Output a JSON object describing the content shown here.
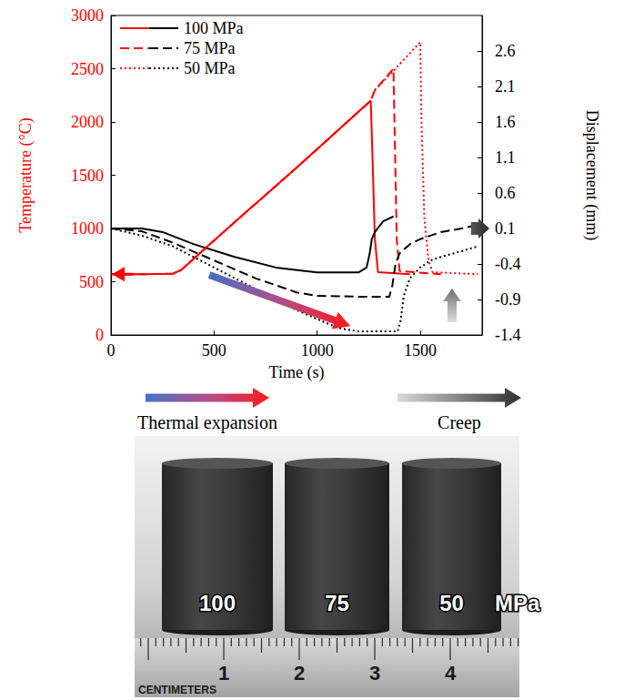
{
  "chart_data": {
    "type": "line",
    "xlabel": "Time (s)",
    "ylabel": "Temperature (°C)",
    "y2label": "Displacement (mm)",
    "xlim": [
      0,
      1800
    ],
    "xticks": [
      0,
      500,
      1000,
      1500
    ],
    "ylim": [
      0,
      3000
    ],
    "yticks": [
      0,
      500,
      1000,
      1500,
      2000,
      2500,
      3000
    ],
    "y2lim": [
      -1.4,
      3.1
    ],
    "y2ticks": [
      -1.4,
      -0.9,
      -0.4,
      0.1,
      0.6,
      1.1,
      1.6,
      2.1,
      2.6
    ],
    "grid": false,
    "legend": "upper left",
    "annotations": [
      "Thermal expansion",
      "Creep"
    ],
    "series": [
      {
        "name": "100 MPa",
        "axis": "y",
        "color": "#ff0000",
        "line_style": "solid",
        "x": [
          0,
          150,
          300,
          340,
          600,
          900,
          1260,
          1268,
          1280,
          1295,
          1450
        ],
        "values": [
          570,
          570,
          575,
          610,
          1060,
          1570,
          2200,
          1700,
          900,
          590,
          570
        ]
      },
      {
        "name": "100 MPa",
        "axis": "y2",
        "color": "#000000",
        "line_style": "solid",
        "x": [
          0,
          150,
          250,
          400,
          600,
          800,
          1000,
          1200,
          1240,
          1255,
          1265,
          1280,
          1320,
          1370
        ],
        "values": [
          0.1,
          0.1,
          0.05,
          -0.12,
          -0.3,
          -0.45,
          -0.52,
          -0.52,
          -0.45,
          -0.25,
          -0.05,
          0.05,
          0.2,
          0.27
        ]
      },
      {
        "name": "75 MPa",
        "axis": "y",
        "color": "#ff0000",
        "line_style": "dashed",
        "x": [
          0,
          150,
          300,
          340,
          600,
          900,
          1260,
          1280,
          1370,
          1376,
          1386,
          1400,
          1600
        ],
        "values": [
          570,
          570,
          575,
          610,
          1060,
          1570,
          2200,
          2300,
          2500,
          1900,
          900,
          600,
          570
        ]
      },
      {
        "name": "75 MPa",
        "axis": "y2",
        "color": "#000000",
        "line_style": "dashed",
        "x": [
          0,
          150,
          300,
          500,
          700,
          900,
          1000,
          1200,
          1350,
          1365,
          1380,
          1400,
          1450,
          1500,
          1600,
          1700,
          1780
        ],
        "values": [
          0.1,
          0.06,
          -0.1,
          -0.35,
          -0.6,
          -0.8,
          -0.85,
          -0.86,
          -0.86,
          -0.7,
          -0.4,
          -0.25,
          -0.12,
          -0.05,
          0.05,
          0.1,
          0.15
        ]
      },
      {
        "name": "50 MPa",
        "axis": "y",
        "color": "#ff0000",
        "line_style": "dotted",
        "x": [
          0,
          150,
          300,
          340,
          600,
          900,
          1260,
          1280,
          1370,
          1500,
          1506,
          1520,
          1540,
          1560,
          1780
        ],
        "values": [
          570,
          570,
          575,
          610,
          1060,
          1570,
          2200,
          2300,
          2480,
          2750,
          2000,
          1100,
          700,
          590,
          570
        ]
      },
      {
        "name": "50 MPa",
        "axis": "y2",
        "color": "#000000",
        "line_style": "dotted",
        "x": [
          0,
          150,
          300,
          500,
          700,
          900,
          1100,
          1200,
          1390,
          1405,
          1420,
          1450,
          1500,
          1550,
          1600,
          1700,
          1780
        ],
        "values": [
          0.1,
          0.0,
          -0.15,
          -0.45,
          -0.75,
          -1.05,
          -1.3,
          -1.35,
          -1.35,
          -1.2,
          -0.85,
          -0.6,
          -0.45,
          -0.35,
          -0.3,
          -0.22,
          -0.15
        ]
      }
    ]
  },
  "photo": {
    "labels": [
      "100",
      "75",
      "50"
    ],
    "unit": "MPa",
    "ruler_label": "CENTIMETERS",
    "ruler_ticks": [
      1,
      2,
      3,
      4
    ]
  }
}
